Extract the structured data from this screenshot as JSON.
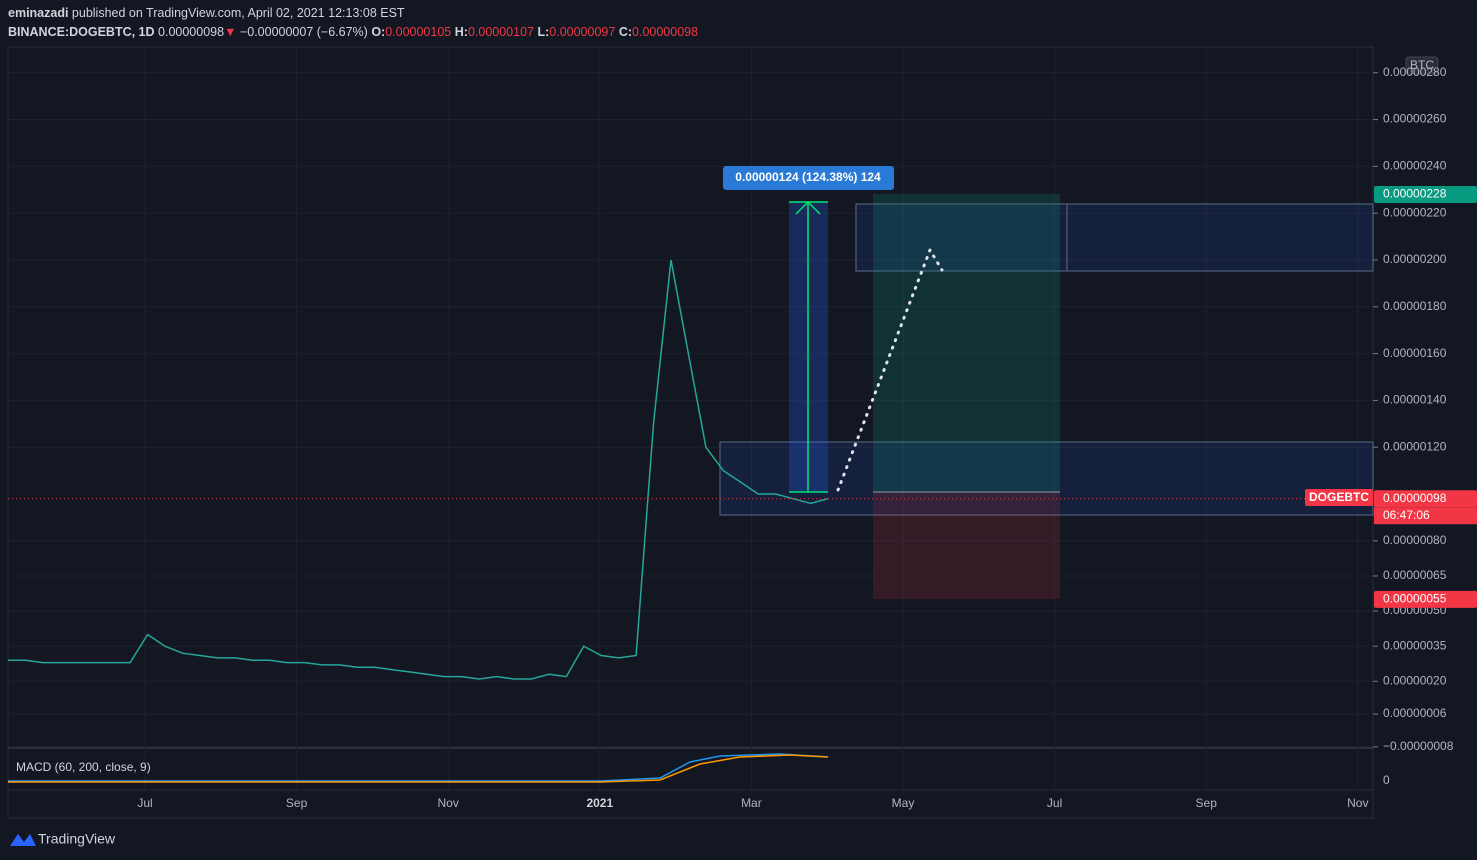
{
  "header": {
    "line1": {
      "author": "eminazadi",
      "rest": "published on TradingView.com, April 02, 2021 12:13:08 EST"
    },
    "line2": {
      "symbol": "BINANCE:DOGEBTC, 1D",
      "last": "0.00000098",
      "arrow": "▼",
      "change": "−0.00000007 (−6.67%)",
      "o_label": "O:",
      "o": "0.00000105",
      "h_label": "H:",
      "h": "0.00000107",
      "l_label": "L:",
      "l": "0.00000097",
      "c_label": "C:",
      "c": "0.00000098"
    }
  },
  "price": {
    "type": "line",
    "color": "#26a69a",
    "values": [
      2.9e-07,
      2.9e-07,
      2.8e-07,
      2.8e-07,
      2.8e-07,
      2.8e-07,
      2.8e-07,
      2.8e-07,
      4e-07,
      3.5e-07,
      3.2e-07,
      3.1e-07,
      3e-07,
      3e-07,
      2.9e-07,
      2.9e-07,
      2.8e-07,
      2.8e-07,
      2.7e-07,
      2.7e-07,
      2.6e-07,
      2.6e-07,
      2.5e-07,
      2.4e-07,
      2.3e-07,
      2.2e-07,
      2.2e-07,
      2.1e-07,
      2.2e-07,
      2.1e-07,
      2.1e-07,
      2.3e-07,
      2.2e-07,
      3.5e-07,
      3.1e-07,
      3e-07,
      3.1e-07,
      1.3e-06,
      2e-06,
      1.6e-06,
      1.2e-06,
      1.1e-06,
      1.05e-06,
      1e-06,
      1e-06,
      9.8e-07,
      9.6e-07,
      9.8e-07
    ],
    "ylim": [
      -8.5e-08,
      2.91e-06
    ],
    "yticks": [
      {
        "value": 2.8e-06,
        "label": "0.00000280"
      },
      {
        "value": 2.6e-06,
        "label": "0.00000260"
      },
      {
        "value": 2.4e-06,
        "label": "0.00000240"
      },
      {
        "value": 2.2e-06,
        "label": "0.00000220"
      },
      {
        "value": 2e-06,
        "label": "0.00000200"
      },
      {
        "value": 1.8e-06,
        "label": "0.00000180"
      },
      {
        "value": 1.6e-06,
        "label": "0.00000160"
      },
      {
        "value": 1.4e-06,
        "label": "0.00000140"
      },
      {
        "value": 1.2e-06,
        "label": "0.00000120"
      },
      {
        "value": 8e-07,
        "label": "0.00000080"
      },
      {
        "value": 6.5e-07,
        "label": "0.00000065"
      },
      {
        "value": 5e-07,
        "label": "0.00000050"
      },
      {
        "value": 3.5e-07,
        "label": "0.00000035"
      },
      {
        "value": 2e-07,
        "label": "0.00000020"
      },
      {
        "value": 6e-08,
        "label": "0.00000006"
      },
      {
        "value": -8e-08,
        "label": "−0.00000008"
      }
    ],
    "xlabels": [
      "Jul",
      "Sep",
      "Nov",
      "2021",
      "Mar",
      "May",
      "Jul",
      "Sep",
      "Nov"
    ],
    "badges": [
      {
        "value": 2.28e-06,
        "label": "0.00000228",
        "color": "#089981"
      },
      {
        "value": 9.8e-07,
        "label": "0.00000098",
        "color": "#f23645"
      },
      {
        "value": 5.5e-07,
        "label": "0.00000055",
        "color": "#f23645"
      }
    ]
  },
  "labels": {
    "currency": "BTC",
    "measure": "0.00000124 (124.38%) 124",
    "symbol_tag": "DOGEBTC",
    "countdown": "06:47:06",
    "macd": "MACD (60, 200, close, 9)",
    "macd_zero": "0",
    "brand": "TradingView"
  }
}
